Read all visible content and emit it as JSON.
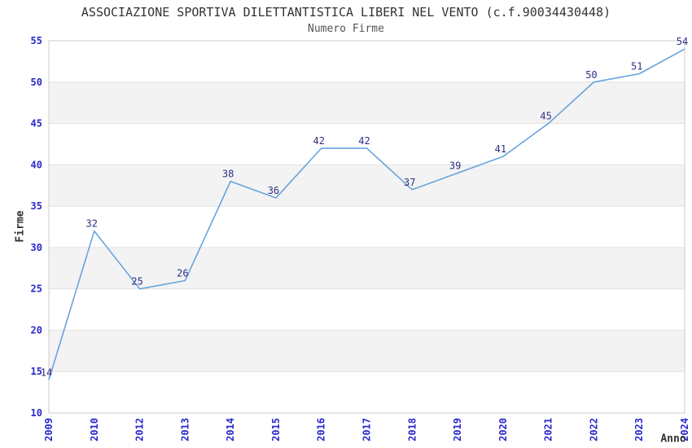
{
  "chart_data": {
    "type": "line",
    "title": "ASSOCIAZIONE SPORTIVA DILETTANTISTICA LIBERI NEL VENTO (c.f.90034430448)",
    "subtitle": "Numero Firme",
    "categories": [
      "2009",
      "2010",
      "2012",
      "2013",
      "2014",
      "2015",
      "2016",
      "2017",
      "2018",
      "2019",
      "2020",
      "2021",
      "2022",
      "2023",
      "2024"
    ],
    "values": [
      14,
      32,
      25,
      26,
      38,
      36,
      42,
      42,
      37,
      39,
      41,
      45,
      50,
      51,
      54
    ],
    "xlabel": "Anno",
    "ylabel": "Firme",
    "ylim": [
      10,
      55
    ],
    "ytick_step": 5,
    "yticks": [
      10,
      15,
      20,
      25,
      30,
      35,
      40,
      45,
      50,
      55
    ],
    "grid": "alternating-horizontal-bands",
    "legend": "none",
    "point_markers": false,
    "data_labels_shown": true,
    "colors": {
      "line": "#69a3dd",
      "tick_label": "#2929cc",
      "data_label": "#2e2e85",
      "band": "#f3f3f3",
      "gridline": "#e2e2e2",
      "plot_border": "#cccccc",
      "title_text": "#333333",
      "axis_title_text": "#333333",
      "background": "#ffffff"
    }
  }
}
